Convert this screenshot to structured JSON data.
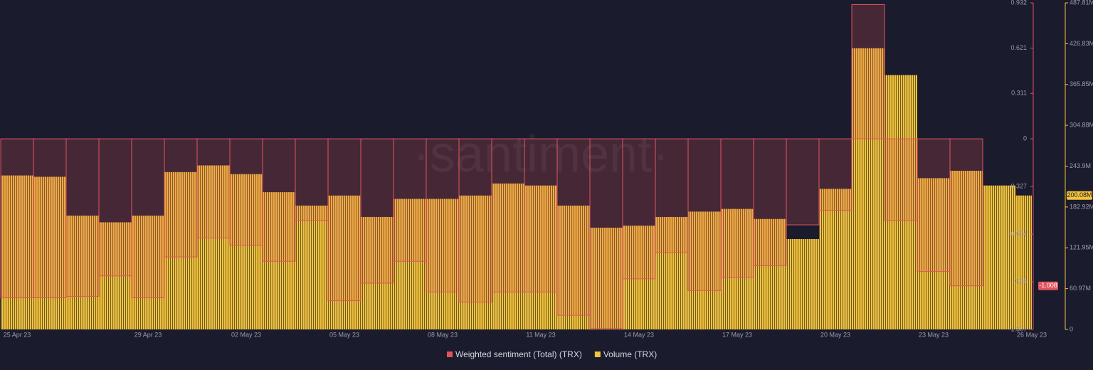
{
  "chart_data": {
    "type": "combo",
    "watermark": "·santiment·",
    "categories": [
      "25 Apr 23",
      null,
      null,
      null,
      "29 Apr 23",
      null,
      null,
      "02 May 23",
      null,
      null,
      "05 May 23",
      null,
      null,
      "08 May 23",
      null,
      null,
      "11 May 23",
      null,
      null,
      "14 May 23",
      null,
      null,
      "17 May 23",
      null,
      null,
      "20 May 23",
      null,
      null,
      "23 May 23",
      null,
      null,
      "26 May 23"
    ],
    "series": [
      {
        "name": "Weighted sentiment (Total) (TRX)",
        "type": "step",
        "color": "#e2545c",
        "values": [
          -1.09,
          -1.09,
          -1.08,
          -0.94,
          -1.09,
          -0.81,
          -0.68,
          -0.73,
          -0.84,
          -0.56,
          -1.11,
          -0.99,
          -0.84,
          -1.05,
          -1.12,
          -1.05,
          -1.05,
          -1.21,
          -1.3,
          -0.96,
          -0.78,
          -1.04,
          -0.95,
          -0.87,
          -0.59,
          -0.49,
          0.92,
          -0.56,
          -0.91,
          -1.008,
          null,
          null
        ],
        "value_labels": [
          null,
          null,
          null,
          null,
          null,
          null,
          null,
          null,
          null,
          null,
          null,
          null,
          null,
          null,
          null,
          null,
          null,
          null,
          null,
          null,
          null,
          null,
          null,
          null,
          null,
          null,
          null,
          null,
          null,
          "-1.008",
          null,
          null
        ]
      },
      {
        "name": "Volume (TRX)",
        "type": "bar",
        "axis": "y2",
        "color": "#f3c33c",
        "values": [
          230,
          228,
          170,
          160,
          170,
          235,
          245,
          232,
          205,
          185,
          200,
          168,
          195,
          195,
          200,
          218,
          215,
          185,
          152,
          155,
          168,
          176,
          180,
          165,
          135,
          210,
          420,
          380,
          226,
          237,
          215,
          200.08
        ],
        "value_labels": [
          null,
          null,
          null,
          null,
          null,
          null,
          null,
          null,
          null,
          null,
          null,
          null,
          null,
          null,
          null,
          null,
          null,
          null,
          null,
          null,
          null,
          null,
          null,
          null,
          null,
          null,
          null,
          null,
          null,
          null,
          null,
          "200.08M"
        ]
      }
    ],
    "ylim": [
      -1.307,
      0.932
    ],
    "yticks": [
      -1.307,
      -0.98,
      -0.654,
      -0.327,
      0,
      0.311,
      0.621,
      0.932
    ],
    "y2lim": [
      0,
      487.81
    ],
    "y2ticks": [
      0,
      {
        "value": 60.97,
        "label": "60.97M"
      },
      {
        "value": 121.95,
        "label": "121.95M"
      },
      {
        "value": 182.92,
        "label": "182.92M"
      },
      {
        "value": 243.9,
        "label": "243.9M"
      },
      {
        "value": 304.88,
        "label": "304.88M"
      },
      {
        "value": 365.85,
        "label": "365.85M"
      },
      {
        "value": 426.83,
        "label": "426.83M"
      },
      {
        "value": 487.81,
        "label": "487.81M"
      }
    ]
  }
}
